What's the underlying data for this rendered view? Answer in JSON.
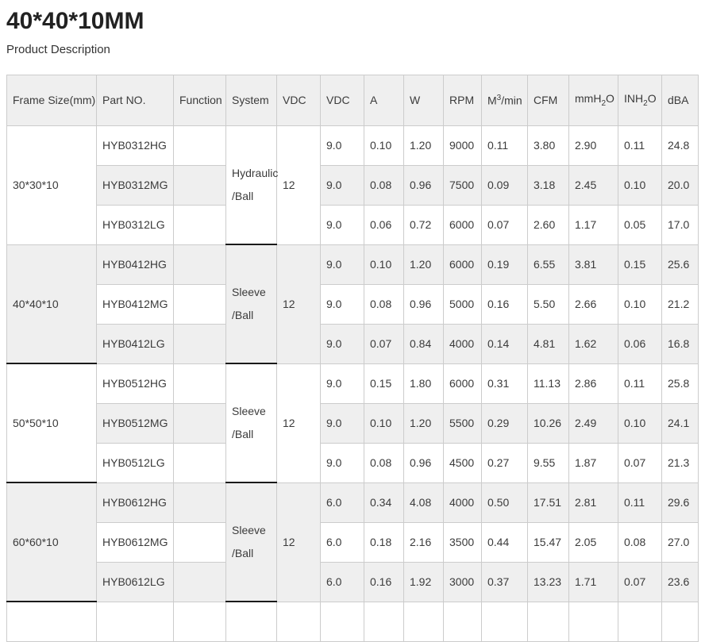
{
  "page": {
    "title": "40*40*10MM",
    "subtitle": "Product Description"
  },
  "colors": {
    "stripe_gray": "#efefef",
    "grid_border": "#cccccc",
    "dark_border": "#1a1a1a",
    "text": "#3b3b3b"
  },
  "table": {
    "headers": [
      {
        "key": "frame-size",
        "label": "Frame Size(mm)"
      },
      {
        "key": "part-no",
        "label": "Part NO."
      },
      {
        "key": "function",
        "label": "Function"
      },
      {
        "key": "system",
        "label": "System"
      },
      {
        "key": "vdc-rated",
        "label": "VDC"
      },
      {
        "key": "vdc",
        "label": "VDC"
      },
      {
        "key": "amps",
        "label": "A"
      },
      {
        "key": "watts",
        "label": "W"
      },
      {
        "key": "rpm",
        "label": "RPM"
      },
      {
        "key": "m3min",
        "pre": "M",
        "sup": "3",
        "post": "/min"
      },
      {
        "key": "cfm",
        "label": "CFM"
      },
      {
        "key": "mmh2o",
        "pre": "mmH",
        "sub": "2",
        "post": "O"
      },
      {
        "key": "inh2o",
        "pre": "INH",
        "sub": "2",
        "post": "O"
      },
      {
        "key": "dba",
        "label": "dBA"
      }
    ],
    "groups": [
      {
        "frame_size": "30*30*10",
        "system_line1": "Hydraulic",
        "system_line2": "/Ball",
        "vdc": "12",
        "frame_dark_border": false,
        "rows": [
          {
            "part_no": "HYB0312HG",
            "function": "",
            "values": [
              "9.0",
              "0.10",
              "1.20",
              "9000",
              "0.11",
              "3.80",
              "2.90",
              "0.11",
              "24.8"
            ]
          },
          {
            "part_no": "HYB0312MG",
            "function": "",
            "values": [
              "9.0",
              "0.08",
              "0.96",
              "7500",
              "0.09",
              "3.18",
              "2.45",
              "0.10",
              "20.0"
            ]
          },
          {
            "part_no": "HYB0312LG",
            "function": "",
            "values": [
              "9.0",
              "0.06",
              "0.72",
              "6000",
              "0.07",
              "2.60",
              "1.17",
              "0.05",
              "17.0"
            ]
          }
        ]
      },
      {
        "frame_size": "40*40*10",
        "system_line1": "Sleeve",
        "system_line2": "/Ball",
        "vdc": "12",
        "frame_dark_border": true,
        "rows": [
          {
            "part_no": "HYB0412HG",
            "function": "",
            "values": [
              "9.0",
              "0.10",
              "1.20",
              "6000",
              "0.19",
              "6.55",
              "3.81",
              "0.15",
              "25.6"
            ]
          },
          {
            "part_no": "HYB0412MG",
            "function": "",
            "values": [
              "9.0",
              "0.08",
              "0.96",
              "5000",
              "0.16",
              "5.50",
              "2.66",
              "0.10",
              "21.2"
            ]
          },
          {
            "part_no": "HYB0412LG",
            "function": "",
            "values": [
              "9.0",
              "0.07",
              "0.84",
              "4000",
              "0.14",
              "4.81",
              "1.62",
              "0.06",
              "16.8"
            ]
          }
        ]
      },
      {
        "frame_size": "50*50*10",
        "system_line1": "Sleeve",
        "system_line2": "/Ball",
        "vdc": "12",
        "frame_dark_border": true,
        "rows": [
          {
            "part_no": "HYB0512HG",
            "function": "",
            "values": [
              "9.0",
              "0.15",
              "1.80",
              "6000",
              "0.31",
              "11.13",
              "2.86",
              "0.11",
              "25.8"
            ]
          },
          {
            "part_no": "HYB0512MG",
            "function": "",
            "values": [
              "9.0",
              "0.10",
              "1.20",
              "5500",
              "0.29",
              "10.26",
              "2.49",
              "0.10",
              "24.1"
            ]
          },
          {
            "part_no": "HYB0512LG",
            "function": "",
            "values": [
              "9.0",
              "0.08",
              "0.96",
              "4500",
              "0.27",
              "9.55",
              "1.87",
              "0.07",
              "21.3"
            ]
          }
        ]
      },
      {
        "frame_size": "60*60*10",
        "system_line1": "Sleeve",
        "system_line2": "/Ball",
        "vdc": "12",
        "frame_dark_border": true,
        "rows": [
          {
            "part_no": "HYB0612HG",
            "function": "",
            "values": [
              "6.0",
              "0.34",
              "4.08",
              "4000",
              "0.50",
              "17.51",
              "2.81",
              "0.11",
              "29.6"
            ]
          },
          {
            "part_no": "HYB0612MG",
            "function": "",
            "values": [
              "6.0",
              "0.18",
              "2.16",
              "3500",
              "0.44",
              "15.47",
              "2.05",
              "0.08",
              "27.0"
            ]
          },
          {
            "part_no": "HYB0612LG",
            "function": "",
            "values": [
              "6.0",
              "0.16",
              "1.92",
              "3000",
              "0.37",
              "13.23",
              "1.71",
              "0.07",
              "23.6"
            ]
          }
        ]
      }
    ]
  }
}
